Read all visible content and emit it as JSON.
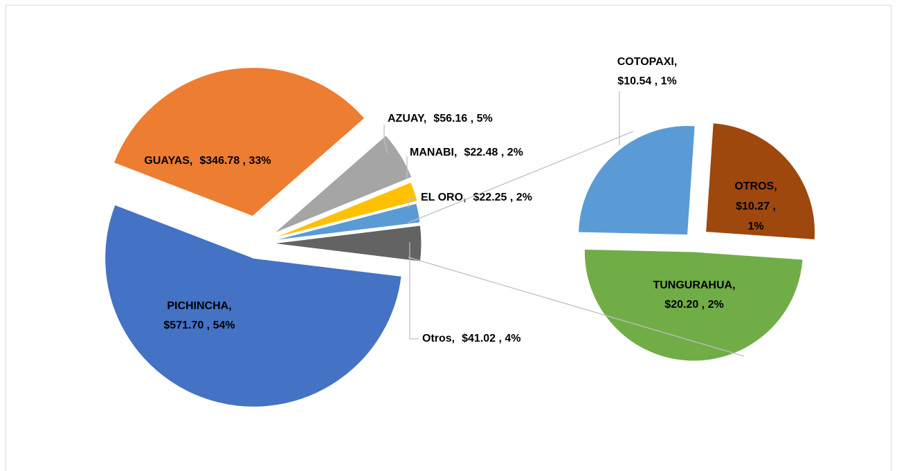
{
  "chart_data": [
    {
      "type": "pie",
      "categories": [
        "PICHINCHA,",
        "GUAYAS,",
        "AZUAY,",
        "MANABI,",
        "EL ORO,",
        "Otros,"
      ],
      "values": [
        571.7,
        346.78,
        56.16,
        22.48,
        22.25,
        41.02
      ],
      "value_labels": [
        "$571.70 , 54%",
        "$346.78 , 33%",
        "$56.16 , 5%",
        "$22.48 , 2%",
        "$22.25 , 2%",
        "$41.02 , 4%"
      ],
      "colors": [
        "#4472c4",
        "#ed7d31",
        "#a5a5a5",
        "#ffc000",
        "#5b9bd5",
        "#636363"
      ]
    },
    {
      "type": "pie",
      "categories": [
        "COTOPAXI,",
        "OTROS,",
        "TUNGURAHUA,"
      ],
      "values": [
        10.54,
        10.27,
        20.2
      ],
      "value_labels": [
        "$10.54 , 1%",
        "$10.27 , 1%",
        "$20.20 , 2%"
      ],
      "colors": [
        "#5b9bd5",
        "#9e480e",
        "#70ad47"
      ]
    }
  ]
}
